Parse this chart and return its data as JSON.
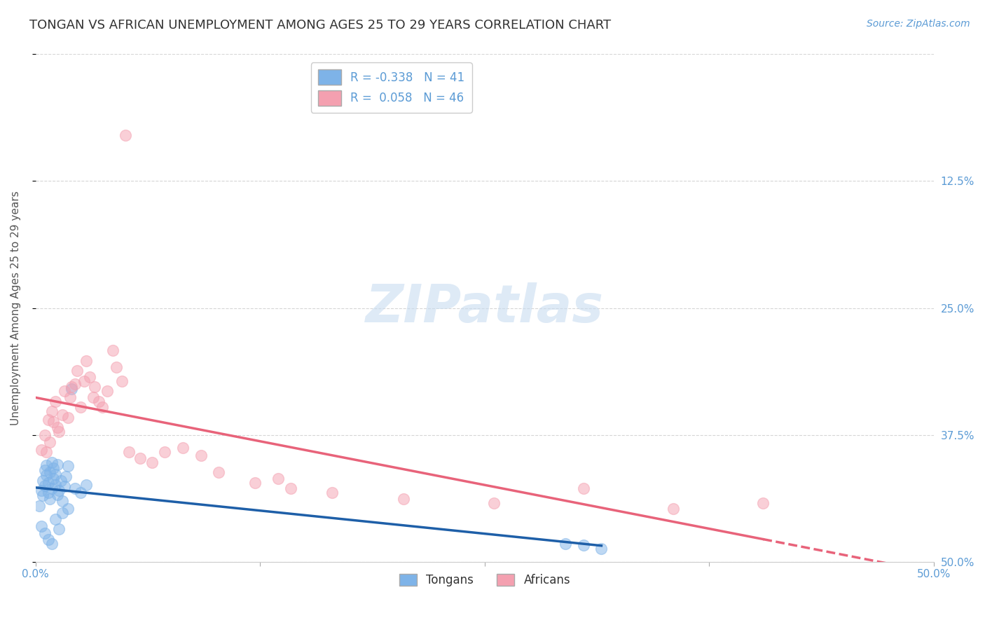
{
  "title": "TONGAN VS AFRICAN UNEMPLOYMENT AMONG AGES 25 TO 29 YEARS CORRELATION CHART",
  "source": "Source: ZipAtlas.com",
  "ylabel": "Unemployment Among Ages 25 to 29 years",
  "xlim": [
    0.0,
    0.5
  ],
  "ylim": [
    0.0,
    0.5
  ],
  "tongan_R": -0.338,
  "tongan_N": 41,
  "african_R": 0.058,
  "african_N": 46,
  "tongan_color": "#7EB3E8",
  "african_color": "#F4A0B0",
  "tongan_line_color": "#1E5FA8",
  "african_line_color": "#E8637A",
  "watermark_color": "#C8DCF0",
  "background_color": "#FFFFFF",
  "grid_color": "#CCCCCC",
  "right_tick_color": "#5B9BD5",
  "tongan_x": [
    0.002,
    0.003,
    0.004,
    0.004,
    0.005,
    0.005,
    0.006,
    0.006,
    0.007,
    0.007,
    0.008,
    0.008,
    0.009,
    0.009,
    0.01,
    0.01,
    0.011,
    0.011,
    0.012,
    0.012,
    0.013,
    0.014,
    0.015,
    0.016,
    0.017,
    0.018,
    0.02,
    0.022,
    0.025,
    0.028,
    0.003,
    0.005,
    0.007,
    0.009,
    0.011,
    0.013,
    0.015,
    0.018,
    0.295,
    0.305,
    0.315
  ],
  "tongan_y": [
    0.055,
    0.07,
    0.065,
    0.08,
    0.075,
    0.09,
    0.085,
    0.095,
    0.068,
    0.078,
    0.062,
    0.088,
    0.072,
    0.098,
    0.082,
    0.092,
    0.076,
    0.086,
    0.066,
    0.096,
    0.07,
    0.08,
    0.06,
    0.074,
    0.084,
    0.094,
    0.17,
    0.072,
    0.068,
    0.076,
    0.035,
    0.028,
    0.022,
    0.018,
    0.042,
    0.032,
    0.048,
    0.052,
    0.018,
    0.016,
    0.013
  ],
  "african_x": [
    0.003,
    0.005,
    0.007,
    0.008,
    0.009,
    0.01,
    0.011,
    0.012,
    0.013,
    0.015,
    0.016,
    0.018,
    0.019,
    0.02,
    0.022,
    0.023,
    0.025,
    0.027,
    0.028,
    0.03,
    0.032,
    0.033,
    0.035,
    0.037,
    0.04,
    0.043,
    0.045,
    0.048,
    0.052,
    0.058,
    0.065,
    0.072,
    0.082,
    0.092,
    0.102,
    0.122,
    0.135,
    0.205,
    0.255,
    0.305,
    0.355,
    0.405,
    0.006,
    0.05,
    0.142,
    0.165
  ],
  "african_y": [
    0.11,
    0.125,
    0.14,
    0.118,
    0.148,
    0.138,
    0.158,
    0.132,
    0.128,
    0.145,
    0.168,
    0.142,
    0.162,
    0.172,
    0.175,
    0.188,
    0.152,
    0.178,
    0.198,
    0.182,
    0.162,
    0.172,
    0.158,
    0.152,
    0.168,
    0.208,
    0.192,
    0.178,
    0.108,
    0.102,
    0.098,
    0.108,
    0.112,
    0.105,
    0.088,
    0.078,
    0.082,
    0.062,
    0.058,
    0.072,
    0.052,
    0.058,
    0.108,
    0.42,
    0.072,
    0.068
  ]
}
